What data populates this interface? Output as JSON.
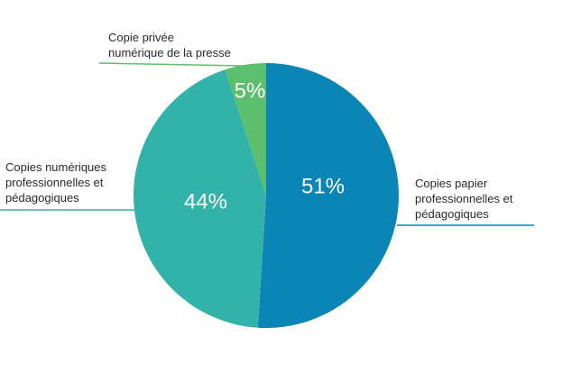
{
  "chart_data": {
    "type": "pie",
    "categories": [
      "Copies papier\nprofessionnelles et\npédagogiques",
      "Copies numériques\nprofessionnelles et\npédagogiques",
      "Copie privée\nnumérique de la presse"
    ],
    "values": [
      51,
      44,
      5
    ],
    "value_labels": [
      "51%",
      "44%",
      "5%"
    ],
    "colors": [
      "#0a85b6",
      "#33b2aa",
      "#5cbf6d"
    ]
  }
}
